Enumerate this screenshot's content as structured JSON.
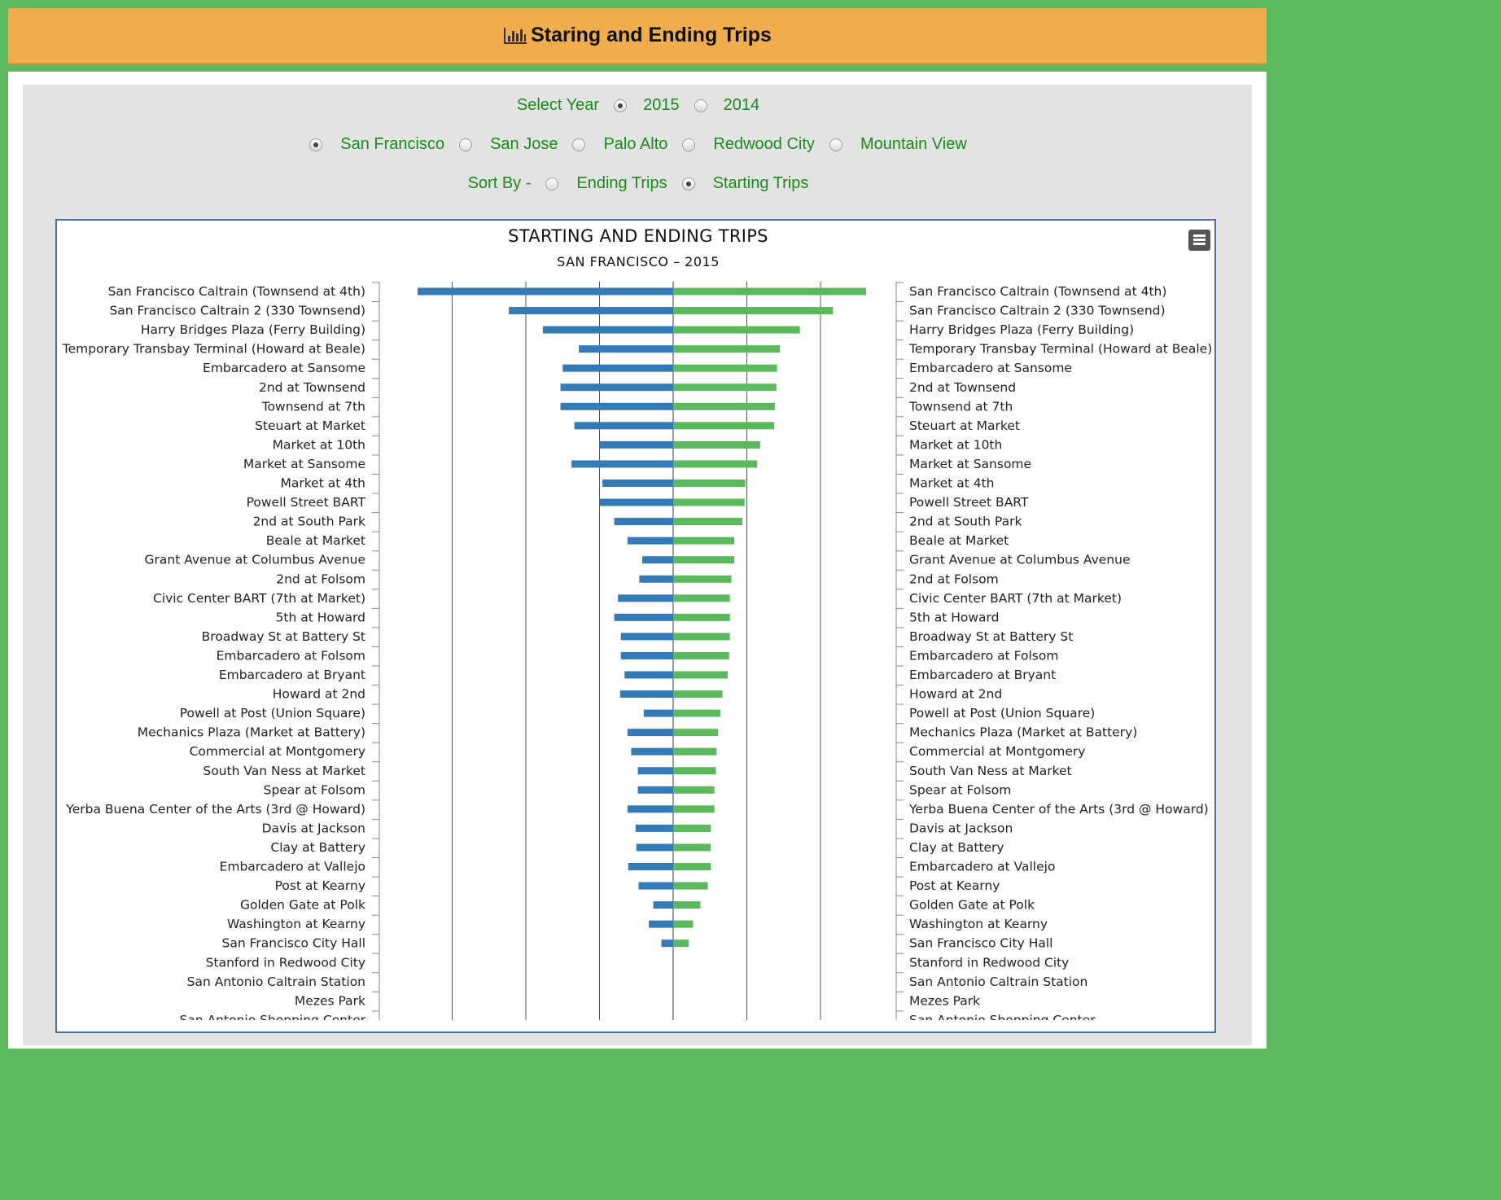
{
  "header": {
    "title": "Staring and Ending Trips",
    "icon": "bar-chart-icon"
  },
  "controls": {
    "year_label": "Select Year",
    "years": [
      {
        "label": "2015",
        "checked": true
      },
      {
        "label": "2014",
        "checked": false
      }
    ],
    "cities": [
      {
        "label": "San Francisco",
        "checked": true
      },
      {
        "label": "San Jose",
        "checked": false
      },
      {
        "label": "Palo Alto",
        "checked": false
      },
      {
        "label": "Redwood City",
        "checked": false
      },
      {
        "label": "Mountain View",
        "checked": false
      }
    ],
    "sort_label": "Sort By -",
    "sort_options": [
      {
        "label": "Ending Trips",
        "checked": false
      },
      {
        "label": "Starting Trips",
        "checked": true
      }
    ]
  },
  "colors": {
    "starting": "#337ab7",
    "ending": "#5cb85c",
    "accent_text": "#1b8a1b",
    "header_bg": "#f0ad4e"
  },
  "chart_data": {
    "type": "bar",
    "title": "STARTING AND ENDING TRIPS",
    "subtitle": "SAN FRANCISCO – 2015",
    "categories": [
      "San Francisco Caltrain (Townsend at 4th)",
      "San Francisco Caltrain 2 (330 Townsend)",
      "Harry Bridges Plaza (Ferry Building)",
      "Temporary Transbay Terminal (Howard at Beale)",
      "Embarcadero at Sansome",
      "2nd at Townsend",
      "Townsend at 7th",
      "Steuart at Market",
      "Market at 10th",
      "Market at Sansome",
      "Market at 4th",
      "Powell Street BART",
      "2nd at South Park",
      "Beale at Market",
      "Grant Avenue at Columbus Avenue",
      "2nd at Folsom",
      "Civic Center BART (7th at Market)",
      "5th at Howard",
      "Broadway St at Battery St",
      "Embarcadero at Folsom",
      "Embarcadero at Bryant",
      "Howard at 2nd",
      "Powell at Post (Union Square)",
      "Mechanics Plaza (Market at Battery)",
      "Commercial at Montgomery",
      "South Van Ness at Market",
      "Spear at Folsom",
      "Yerba Buena Center of the Arts (3rd @ Howard)",
      "Davis at Jackson",
      "Clay at Battery",
      "Embarcadero at Vallejo",
      "Post at Kearny",
      "Golden Gate at Polk",
      "Washington at Kearny",
      "San Francisco City Hall",
      "Stanford in Redwood City",
      "San Antonio Caltrain Station",
      "Mezes Park",
      "San Antonio Shopping Center"
    ],
    "series": [
      {
        "values": [
          3470,
          2230,
          1770,
          1280,
          1500,
          1530,
          1530,
          1340,
          1000,
          1380,
          960,
          1000,
          800,
          620,
          420,
          460,
          750,
          800,
          710,
          710,
          660,
          720,
          400,
          620,
          570,
          480,
          480,
          620,
          510,
          500,
          610,
          470,
          270,
          330,
          160,
          0,
          0,
          0,
          0
        ]
      },
      {
        "values": [
          2620,
          2170,
          1720,
          1450,
          1410,
          1400,
          1380,
          1370,
          1180,
          1140,
          980,
          970,
          940,
          830,
          830,
          790,
          770,
          770,
          770,
          760,
          740,
          670,
          640,
          610,
          590,
          580,
          560,
          560,
          510,
          510,
          510,
          470,
          370,
          270,
          210,
          0,
          0,
          0,
          0
        ]
      }
    ],
    "xlim": [
      -4000,
      4000
    ],
    "grid": true
  }
}
